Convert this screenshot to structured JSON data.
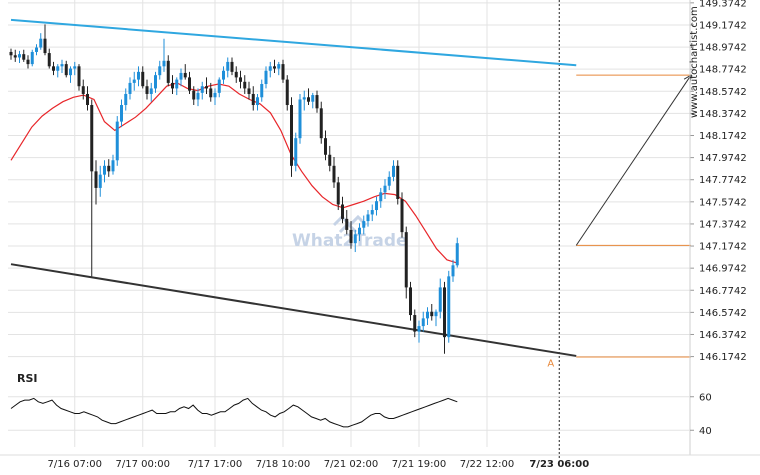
{
  "brand": "www.autochartist.com",
  "watermark": "What2Trade",
  "colors": {
    "bull": "#1f8fd9",
    "bear": "#222222",
    "ma": "#e8262a",
    "upper_trend": "#2fa7e0",
    "lower_trend": "#333333",
    "level": "#e8883a",
    "grid": "#e3e3e3",
    "forecast_arrow": "#333333"
  },
  "chart_data": {
    "type": "candlestick",
    "y_ticks": [
      "149.3742",
      "149.1742",
      "148.9742",
      "148.7742",
      "148.5742",
      "148.3742",
      "148.1742",
      "147.9742",
      "147.7742",
      "147.5742",
      "147.3742",
      "147.1742",
      "146.9742",
      "146.7742",
      "146.5742",
      "146.3742",
      "146.1742"
    ],
    "x_ticks": [
      "7/16 07:00",
      "7/17 00:00",
      "7/17 17:00",
      "7/18 10:00",
      "7/21 02:00",
      "7/21 19:00",
      "7/22 12:00",
      "7/23 06:00"
    ],
    "x_tick_bold": "7/23 06:00",
    "ylim": [
      146.08,
      149.4
    ],
    "candles": [
      [
        148.93,
        148.96,
        148.86,
        148.9
      ],
      [
        148.9,
        148.95,
        148.84,
        148.88
      ],
      [
        148.88,
        148.94,
        148.83,
        148.91
      ],
      [
        148.91,
        148.95,
        148.84,
        148.86
      ],
      [
        148.86,
        148.9,
        148.78,
        148.82
      ],
      [
        148.82,
        148.95,
        148.8,
        148.93
      ],
      [
        148.93,
        149.0,
        148.9,
        148.97
      ],
      [
        148.97,
        149.1,
        148.95,
        149.05
      ],
      [
        149.05,
        149.18,
        148.9,
        148.92
      ],
      [
        148.92,
        148.96,
        148.78,
        148.8
      ],
      [
        148.8,
        148.84,
        148.72,
        148.76
      ],
      [
        148.76,
        148.82,
        148.7,
        148.8
      ],
      [
        148.8,
        148.86,
        148.74,
        148.82
      ],
      [
        148.82,
        148.85,
        148.7,
        148.72
      ],
      [
        148.72,
        148.8,
        148.65,
        148.78
      ],
      [
        148.78,
        148.84,
        148.72,
        148.8
      ],
      [
        148.8,
        148.82,
        148.58,
        148.62
      ],
      [
        148.62,
        148.68,
        148.5,
        148.55
      ],
      [
        148.55,
        148.62,
        148.4,
        148.45
      ],
      [
        148.45,
        148.5,
        146.9,
        147.85
      ],
      [
        147.85,
        147.95,
        147.55,
        147.7
      ],
      [
        147.7,
        147.9,
        147.62,
        147.82
      ],
      [
        147.82,
        147.95,
        147.75,
        147.9
      ],
      [
        147.9,
        147.96,
        147.8,
        147.85
      ],
      [
        147.85,
        148.0,
        147.82,
        147.95
      ],
      [
        147.95,
        148.35,
        147.9,
        148.3
      ],
      [
        148.3,
        148.5,
        148.25,
        148.45
      ],
      [
        148.45,
        148.6,
        148.4,
        148.55
      ],
      [
        148.55,
        148.7,
        148.5,
        148.65
      ],
      [
        148.65,
        148.75,
        148.58,
        148.68
      ],
      [
        148.68,
        148.8,
        148.62,
        148.75
      ],
      [
        148.75,
        148.8,
        148.6,
        148.62
      ],
      [
        148.62,
        148.68,
        148.5,
        148.55
      ],
      [
        148.55,
        148.65,
        148.48,
        148.6
      ],
      [
        148.6,
        148.75,
        148.56,
        148.72
      ],
      [
        148.72,
        148.85,
        148.68,
        148.8
      ],
      [
        148.8,
        149.05,
        148.75,
        148.85
      ],
      [
        148.85,
        148.9,
        148.62,
        148.65
      ],
      [
        148.65,
        148.72,
        148.55,
        148.6
      ],
      [
        148.6,
        148.7,
        148.54,
        148.68
      ],
      [
        148.68,
        148.78,
        148.62,
        148.74
      ],
      [
        148.74,
        148.82,
        148.68,
        148.7
      ],
      [
        148.7,
        148.75,
        148.55,
        148.58
      ],
      [
        148.58,
        148.62,
        148.45,
        148.5
      ],
      [
        148.5,
        148.6,
        148.44,
        148.56
      ],
      [
        148.56,
        148.66,
        148.5,
        148.62
      ],
      [
        148.62,
        148.7,
        148.55,
        148.6
      ],
      [
        148.6,
        148.65,
        148.48,
        148.52
      ],
      [
        148.52,
        148.6,
        148.45,
        148.56
      ],
      [
        148.56,
        148.7,
        148.52,
        148.68
      ],
      [
        148.68,
        148.8,
        148.64,
        148.76
      ],
      [
        148.76,
        148.88,
        148.7,
        148.84
      ],
      [
        148.84,
        148.88,
        148.72,
        148.75
      ],
      [
        148.75,
        148.8,
        148.65,
        148.7
      ],
      [
        148.7,
        148.76,
        148.6,
        148.66
      ],
      [
        148.66,
        148.72,
        148.55,
        148.6
      ],
      [
        148.6,
        148.66,
        148.5,
        148.55
      ],
      [
        148.55,
        148.62,
        148.4,
        148.45
      ],
      [
        148.45,
        148.55,
        148.4,
        148.52
      ],
      [
        148.52,
        148.68,
        148.48,
        148.64
      ],
      [
        148.64,
        148.8,
        148.6,
        148.76
      ],
      [
        148.76,
        148.84,
        148.7,
        148.8
      ],
      [
        148.8,
        148.86,
        148.74,
        148.78
      ],
      [
        148.78,
        148.84,
        148.72,
        148.82
      ],
      [
        148.82,
        148.86,
        148.65,
        148.68
      ],
      [
        148.68,
        148.72,
        148.4,
        148.45
      ],
      [
        148.45,
        148.52,
        147.8,
        147.9
      ],
      [
        147.9,
        148.2,
        147.85,
        148.15
      ],
      [
        148.15,
        148.55,
        148.1,
        148.5
      ],
      [
        148.5,
        148.58,
        148.4,
        148.52
      ],
      [
        148.52,
        148.6,
        148.45,
        148.48
      ],
      [
        148.48,
        148.56,
        148.42,
        148.54
      ],
      [
        148.54,
        148.58,
        148.38,
        148.42
      ],
      [
        148.42,
        148.48,
        148.1,
        148.15
      ],
      [
        148.15,
        148.22,
        147.95,
        148.0
      ],
      [
        148.0,
        148.08,
        147.85,
        147.9
      ],
      [
        147.9,
        147.98,
        147.7,
        147.75
      ],
      [
        147.75,
        147.8,
        147.5,
        147.55
      ],
      [
        147.55,
        147.62,
        147.38,
        147.42
      ],
      [
        147.42,
        147.5,
        147.28,
        147.32
      ],
      [
        147.32,
        147.4,
        147.15,
        147.2
      ],
      [
        147.2,
        147.32,
        147.12,
        147.28
      ],
      [
        147.28,
        147.38,
        147.22,
        147.34
      ],
      [
        147.34,
        147.45,
        147.28,
        147.4
      ],
      [
        147.4,
        147.5,
        147.35,
        147.46
      ],
      [
        147.46,
        147.55,
        147.4,
        147.5
      ],
      [
        147.5,
        147.62,
        147.45,
        147.58
      ],
      [
        147.58,
        147.7,
        147.52,
        147.66
      ],
      [
        147.66,
        147.78,
        147.6,
        147.72
      ],
      [
        147.72,
        147.85,
        147.68,
        147.8
      ],
      [
        147.8,
        147.95,
        147.76,
        147.9
      ],
      [
        147.9,
        147.95,
        147.55,
        147.6
      ],
      [
        147.6,
        147.66,
        147.25,
        147.3
      ],
      [
        147.3,
        147.35,
        146.7,
        146.8
      ],
      [
        146.8,
        146.85,
        146.5,
        146.55
      ],
      [
        146.55,
        146.6,
        146.35,
        146.4
      ],
      [
        146.4,
        146.5,
        146.3,
        146.45
      ],
      [
        146.45,
        146.58,
        146.4,
        146.52
      ],
      [
        146.52,
        146.62,
        146.46,
        146.58
      ],
      [
        146.58,
        146.65,
        146.5,
        146.54
      ],
      [
        146.54,
        146.6,
        146.45,
        146.58
      ],
      [
        146.58,
        146.88,
        146.52,
        146.8
      ],
      [
        146.8,
        146.85,
        146.2,
        146.35
      ],
      [
        146.35,
        146.95,
        146.3,
        146.9
      ],
      [
        146.9,
        147.05,
        146.85,
        147.0
      ],
      [
        147.0,
        147.25,
        146.98,
        147.2
      ]
    ],
    "ma": [
      147.95,
      148.1,
      148.25,
      148.35,
      148.42,
      148.48,
      148.52,
      148.54,
      148.5,
      148.3,
      148.22,
      148.28,
      148.34,
      148.42,
      148.52,
      148.62,
      148.65,
      148.6,
      148.58,
      148.62,
      148.64,
      148.62,
      148.55,
      148.5,
      148.46,
      148.38,
      148.22,
      148.0,
      147.85,
      147.72,
      147.62,
      147.55,
      147.52,
      147.55,
      147.58,
      147.62,
      147.65,
      147.64,
      147.58,
      147.45,
      147.3,
      147.15,
      147.05,
      147.02
    ],
    "upper_trendline": [
      [
        0,
        149.22
      ],
      [
        133,
        148.81
      ]
    ],
    "lower_trendline": [
      [
        0,
        147.01
      ],
      [
        133,
        146.18
      ]
    ],
    "levels": [
      {
        "value": 148.72,
        "from": 133,
        "to": 160
      },
      {
        "value": 147.18,
        "from": 133,
        "to": 160
      },
      {
        "value": 146.17,
        "from": 133,
        "to": 160
      }
    ],
    "forecast": {
      "from": [
        133,
        147.18
      ],
      "to": [
        160,
        148.72
      ]
    },
    "point_label": "A",
    "point_label_pos": [
      127,
      146.12
    ],
    "rsi": {
      "title": "RSI",
      "ticks": [
        "60",
        "40"
      ],
      "ylim": [
        30,
        70
      ],
      "values": [
        53,
        55,
        57,
        58,
        58,
        59,
        57,
        56,
        57,
        58,
        55,
        53,
        52,
        51,
        50,
        50,
        51,
        50,
        49,
        48,
        46,
        45,
        44,
        44,
        45,
        46,
        47,
        48,
        49,
        50,
        51,
        52,
        50,
        50,
        50,
        51,
        51,
        53,
        54,
        53,
        55,
        52,
        50,
        50,
        49,
        50,
        51,
        51,
        53,
        55,
        56,
        58,
        59,
        56,
        54,
        52,
        51,
        49,
        48,
        50,
        51,
        53,
        55,
        54,
        52,
        50,
        48,
        47,
        46,
        47,
        45,
        44,
        43,
        42,
        42,
        43,
        44,
        45,
        47,
        49,
        50,
        50,
        48,
        47,
        47,
        48,
        49,
        50,
        51,
        52,
        53,
        54,
        55,
        56,
        57,
        58,
        59,
        58,
        57
      ]
    }
  }
}
